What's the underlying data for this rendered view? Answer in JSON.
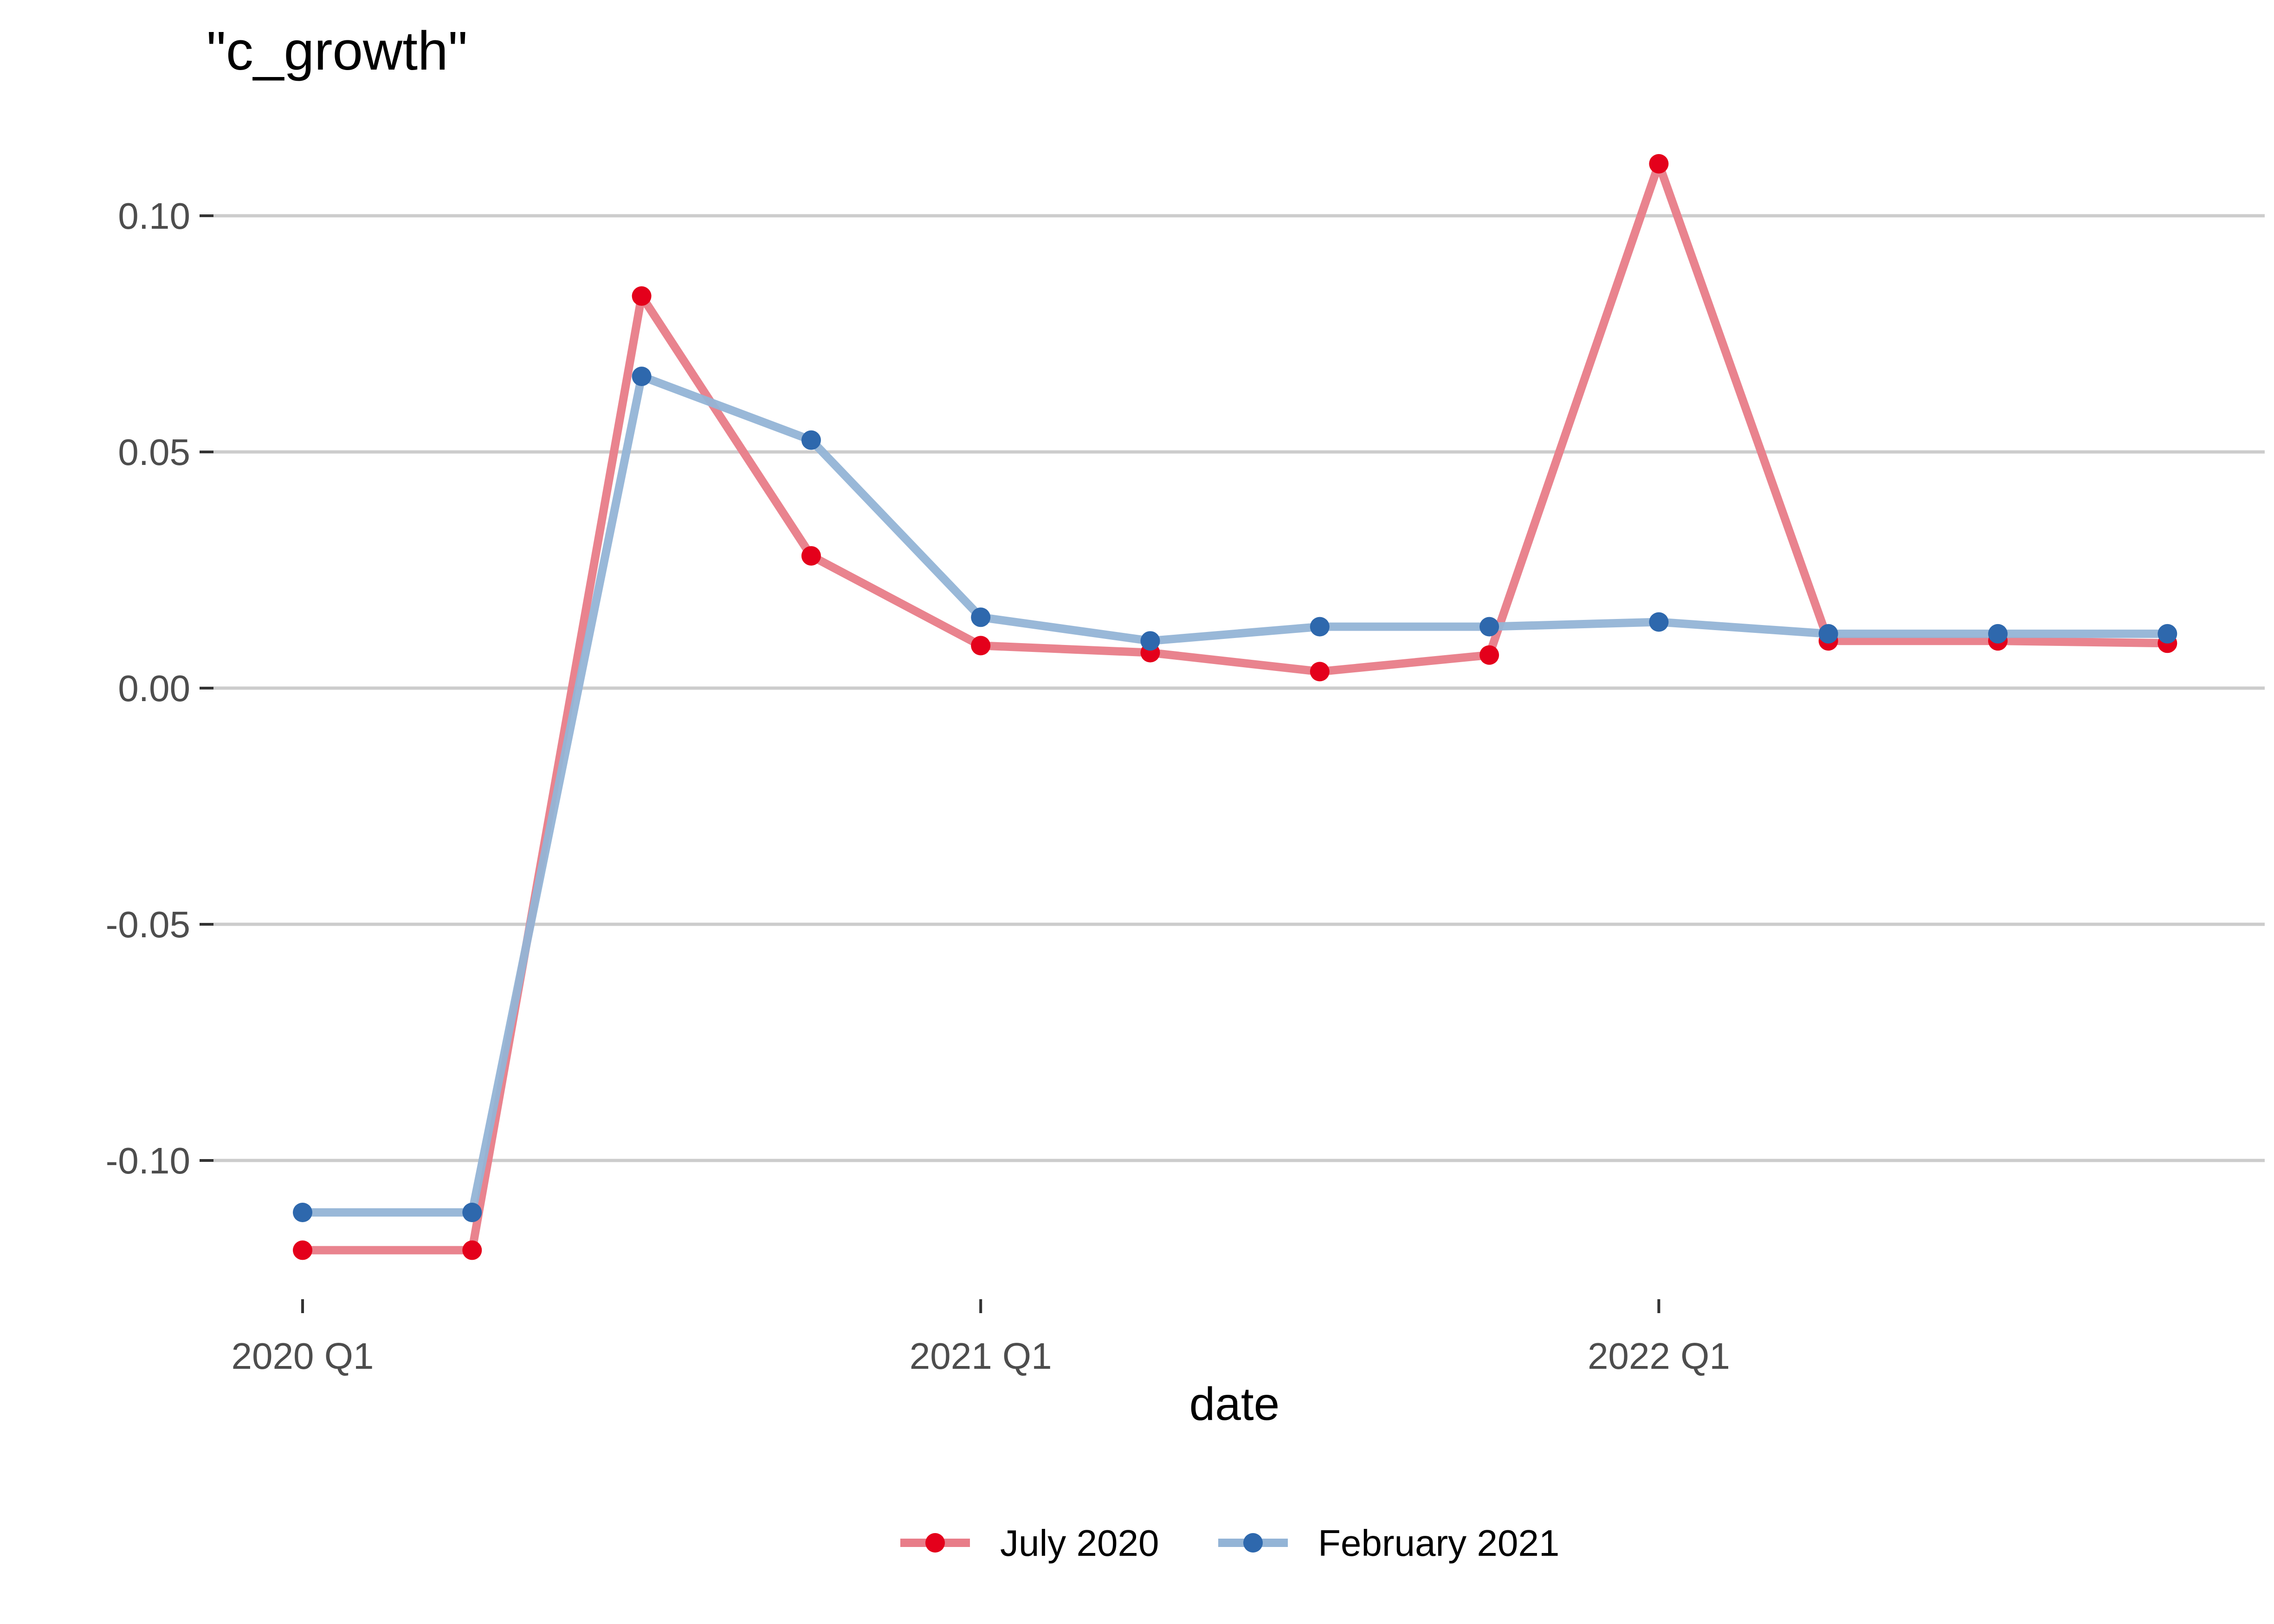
{
  "chart_data": {
    "type": "line",
    "title": "\"c_growth\"",
    "xlabel": "date",
    "ylabel": "",
    "x": [
      "2020 Q1",
      "2020 Q2",
      "2020 Q3",
      "2020 Q4",
      "2021 Q1",
      "2021 Q2",
      "2021 Q3",
      "2021 Q4",
      "2022 Q1",
      "2022 Q2",
      "2022 Q3",
      "2022 Q4"
    ],
    "x_ticks": [
      "2020 Q1",
      "2021 Q1",
      "2022 Q1"
    ],
    "ylim": [
      -0.132,
      0.118
    ],
    "y_ticks": [
      -0.1,
      -0.05,
      0.0,
      0.05,
      0.1
    ],
    "y_tick_labels": [
      "-0.10",
      "-0.05",
      "0.00",
      "0.05",
      "0.10"
    ],
    "grid": "horizontal-major",
    "legend_position": "bottom",
    "series": [
      {
        "name": "July 2020",
        "color": "#E4001B",
        "line_color": "#E87C88",
        "values": [
          -0.119,
          -0.119,
          0.083,
          0.028,
          0.009,
          0.0075,
          0.0035,
          0.007,
          0.111,
          0.01,
          0.01,
          0.0095
        ]
      },
      {
        "name": "February 2021",
        "color": "#2E68AD",
        "line_color": "#93B4D6",
        "values": [
          -0.111,
          -0.111,
          0.066,
          0.0525,
          0.015,
          0.01,
          0.013,
          0.013,
          0.014,
          0.0115,
          0.0115,
          0.0115
        ]
      }
    ]
  }
}
